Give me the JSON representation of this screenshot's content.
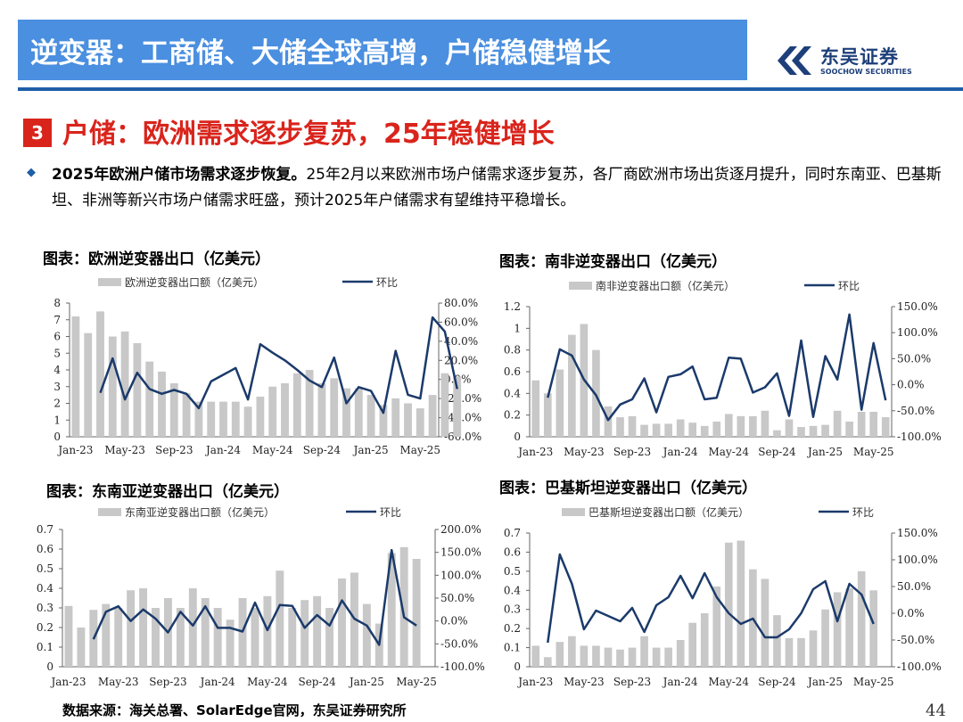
{
  "header": {
    "title": "逆变器：工商储、大储全球高增，户储稳健增长"
  },
  "logo": {
    "cn": "东吴证券",
    "en": "SOOCHOW SECURITIES"
  },
  "section": {
    "number": "3",
    "title": "户储：欧洲需求逐步复苏，25年稳健增长"
  },
  "paragraph": {
    "bold": "2025年欧洲户储市场需求逐步恢复。",
    "text": "25年2月以来欧洲市场户储需求逐步复苏，各厂商欧洲市场出货逐月提升，同时东南亚、巴基斯坦、非洲等新兴市场户储需求旺盛，预计2025年户储需求有望维持平稳增长。"
  },
  "footer": {
    "source": "数据来源：海关总署、SolarEdge官网，东吴证券研究所",
    "page": "44"
  },
  "colors": {
    "header_bg": "#4a8fe0",
    "header_line": "#1f5ea8",
    "accent_red": "#d9241c",
    "bar": "#c8c8c8",
    "line": "#1b3a6b"
  },
  "chart_data": [
    {
      "id": "eu",
      "title": "图表：欧洲逆变器出口（亿美元）",
      "type": "bar+line",
      "bar_series": "欧洲逆变器出口额（亿美元）",
      "line_series": "环比",
      "x_ticks": [
        "Jan-23",
        "May-23",
        "Sep-23",
        "Jan-24",
        "May-24",
        "Sep-24",
        "Jan-25",
        "May-25"
      ],
      "y_left": {
        "min": 0,
        "max": 8,
        "step": 1,
        "ticks": [
          "0",
          "1",
          "2",
          "3",
          "4",
          "5",
          "6",
          "7",
          "8"
        ]
      },
      "y_right": {
        "min": -60,
        "max": 80,
        "step": 20,
        "ticks": [
          "-60.0%",
          "-40.0%",
          "-20.0%",
          "0.0%",
          "20.0%",
          "40.0%",
          "60.0%",
          "80.0%"
        ]
      },
      "bars": [
        7.2,
        6.2,
        7.5,
        6.0,
        6.3,
        5.6,
        4.5,
        3.9,
        3.2,
        2.6,
        2.1,
        2.1,
        2.1,
        2.1,
        1.8,
        2.4,
        3.0,
        3.2,
        3.8,
        4.0,
        3.2,
        3.5,
        2.9,
        2.9,
        2.5,
        1.9,
        2.3,
        2.0,
        1.7,
        2.5,
        3.8,
        3.6
      ],
      "line": [
        -14,
        22,
        -21,
        7,
        -10,
        -15,
        -11,
        -15,
        -30,
        -2,
        5,
        12,
        -21,
        37,
        28,
        20,
        10,
        -1,
        -8,
        23,
        -25,
        -8,
        -12,
        -35,
        30,
        -16,
        -20,
        65,
        50,
        -10
      ]
    },
    {
      "id": "za",
      "title": "图表：南非逆变器出口（亿美元）",
      "type": "bar+line",
      "bar_series": "南非逆变器出口额（亿美元）",
      "line_series": "环比",
      "x_ticks": [
        "Jan-23",
        "May-23",
        "Sep-23",
        "Jan-24",
        "May-24",
        "Sep-24",
        "Jan-25",
        "May-25"
      ],
      "y_left": {
        "min": 0,
        "max": 1.2,
        "step": 0.2,
        "ticks": [
          "0",
          "0.2",
          "0.4",
          "0.6",
          "0.8",
          "1",
          "1.2"
        ]
      },
      "y_right": {
        "min": -100,
        "max": 150,
        "step": 50,
        "ticks": [
          "-100.0%",
          "-50.0%",
          "0.0%",
          "50.0%",
          "100.0%",
          "150.0%"
        ]
      },
      "bars": [
        0.52,
        0.4,
        0.62,
        0.94,
        1.04,
        0.8,
        0.28,
        0.18,
        0.19,
        0.11,
        0.12,
        0.12,
        0.16,
        0.13,
        0.1,
        0.14,
        0.21,
        0.19,
        0.19,
        0.24,
        0.06,
        0.16,
        0.09,
        0.1,
        0.11,
        0.24,
        0.14,
        0.23,
        0.23,
        0.18
      ],
      "line": [
        -25,
        68,
        56,
        10,
        -20,
        -68,
        -38,
        -28,
        12,
        -53,
        15,
        20,
        35,
        -28,
        -25,
        52,
        50,
        -15,
        -5,
        22,
        -60,
        85,
        -62,
        55,
        10,
        135,
        -48,
        80,
        -30
      ]
    },
    {
      "id": "sea",
      "title": "图表：东南亚逆变器出口（亿美元）",
      "type": "bar+line",
      "bar_series": "东南亚逆变器出口额（亿美元）",
      "line_series": "环比",
      "x_ticks": [
        "Jan-23",
        "May-23",
        "Sep-23",
        "Jan-24",
        "May-24",
        "Sep-24",
        "Jan-25",
        "May-25"
      ],
      "y_left": {
        "min": 0,
        "max": 0.7,
        "step": 0.1,
        "ticks": [
          "0",
          "0.1",
          "0.2",
          "0.3",
          "0.4",
          "0.5",
          "0.6",
          "0.7"
        ]
      },
      "y_right": {
        "min": -100,
        "max": 200,
        "step": 50,
        "ticks": [
          "-100.0%",
          "-50.0%",
          "0.0%",
          "50.0%",
          "100.0%",
          "150.0%",
          "200.0%"
        ]
      },
      "bars": [
        0.31,
        0.2,
        0.29,
        0.32,
        0.3,
        0.39,
        0.4,
        0.3,
        0.35,
        0.3,
        0.4,
        0.35,
        0.3,
        0.24,
        0.35,
        0.3,
        0.36,
        0.49,
        0.3,
        0.34,
        0.36,
        0.3,
        0.45,
        0.48,
        0.32,
        0.22,
        0.58,
        0.61,
        0.55
      ],
      "line": [
        -40,
        20,
        32,
        0,
        25,
        5,
        -25,
        20,
        -10,
        32,
        -15,
        -15,
        -23,
        40,
        -20,
        35,
        33,
        -15,
        13,
        -10,
        45,
        5,
        -10,
        -52,
        155,
        8,
        -10
      ]
    },
    {
      "id": "pk",
      "title": "图表：巴基斯坦逆变器出口（亿美元）",
      "type": "bar+line",
      "bar_series": "巴基斯坦逆变器出口额（亿美元）",
      "line_series": "环比",
      "x_ticks": [
        "Jan-23",
        "May-23",
        "Sep-23",
        "Jan-24",
        "May-24",
        "Sep-24",
        "Jan-25",
        "May-25"
      ],
      "y_left": {
        "min": 0,
        "max": 0.7,
        "step": 0.1,
        "ticks": [
          "0",
          "0.1",
          "0.2",
          "0.3",
          "0.4",
          "0.5",
          "0.6",
          "0.7"
        ]
      },
      "y_right": {
        "min": -100,
        "max": 150,
        "step": 50,
        "ticks": [
          "-100.0%",
          "-50.0%",
          "0.0%",
          "50.0%",
          "100.0%",
          "150.0%"
        ]
      },
      "bars": [
        0.11,
        0.05,
        0.13,
        0.16,
        0.11,
        0.11,
        0.1,
        0.09,
        0.1,
        0.16,
        0.1,
        0.1,
        0.14,
        0.23,
        0.28,
        0.42,
        0.65,
        0.66,
        0.51,
        0.46,
        0.27,
        0.15,
        0.15,
        0.19,
        0.3,
        0.39,
        0.41,
        0.5,
        0.4
      ],
      "line": [
        -55,
        110,
        55,
        -30,
        5,
        -5,
        -15,
        10,
        -35,
        15,
        30,
        70,
        28,
        75,
        30,
        0,
        -20,
        -10,
        -45,
        -45,
        -30,
        0,
        45,
        60,
        -15,
        55,
        35,
        -20
      ]
    }
  ]
}
